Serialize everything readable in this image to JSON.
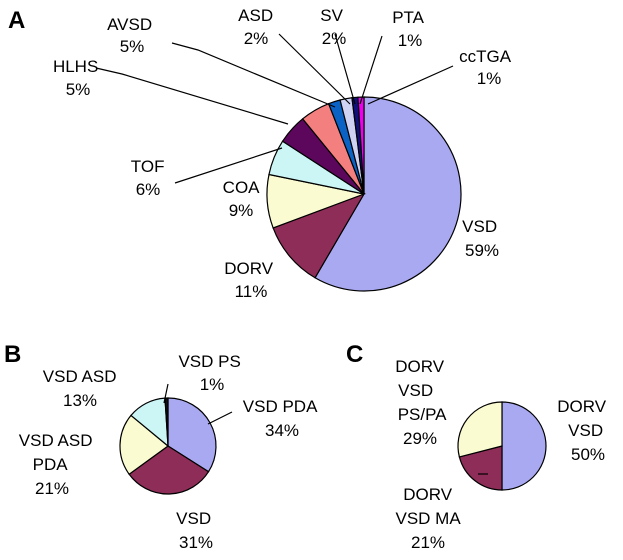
{
  "chart_data": [
    {
      "type": "pie",
      "panel": "A",
      "slices": [
        {
          "label": "VSD",
          "value": 59,
          "pct": "59%",
          "color": "#a9a9f2"
        },
        {
          "label": "DORV",
          "value": 11,
          "pct": "11%",
          "color": "#8e2d57"
        },
        {
          "label": "COA",
          "value": 9,
          "pct": "9%",
          "color": "#fbfbd2"
        },
        {
          "label": "TOF",
          "value": 6,
          "pct": "6%",
          "color": "#ccf5f6"
        },
        {
          "label": "HLHS",
          "value": 5,
          "pct": "5%",
          "color": "#5c075c"
        },
        {
          "label": "AVSD",
          "value": 5,
          "pct": "5%",
          "color": "#f47f7f"
        },
        {
          "label": "ASD",
          "value": 2,
          "pct": "2%",
          "color": "#0a62c5"
        },
        {
          "label": "SV",
          "value": 2,
          "pct": "2%",
          "color": "#cfd2f2"
        },
        {
          "label": "PTA",
          "value": 1,
          "pct": "1%",
          "color": "#11117c"
        },
        {
          "label": "ccTGA",
          "value": 1,
          "pct": "1%",
          "color": "#ee00ee"
        }
      ]
    },
    {
      "type": "pie",
      "panel": "B",
      "slices": [
        {
          "label": "VSD PDA",
          "value": 34,
          "pct": "34%",
          "color": "#a9a9f2"
        },
        {
          "label": "VSD",
          "value": 31,
          "pct": "31%",
          "color": "#8e2d57"
        },
        {
          "label": "VSD ASD PDA",
          "value": 21,
          "pct": "21%",
          "color": "#fbfbd2"
        },
        {
          "label": "VSD ASD",
          "value": 13,
          "pct": "13%",
          "color": "#ccf5f6"
        },
        {
          "label": "VSD PS",
          "value": 1,
          "pct": "1%",
          "color": "#111111"
        }
      ]
    },
    {
      "type": "pie",
      "panel": "C",
      "slices": [
        {
          "label": "DORV VSD",
          "value": 50,
          "pct": "50%",
          "color": "#a9a9f2"
        },
        {
          "label": "DORV VSD MA",
          "value": 21,
          "pct": "21%",
          "color": "#8e2d57"
        },
        {
          "label": "DORV VSD PS/PA",
          "value": 29,
          "pct": "29%",
          "color": "#fbfbd2"
        }
      ]
    }
  ]
}
